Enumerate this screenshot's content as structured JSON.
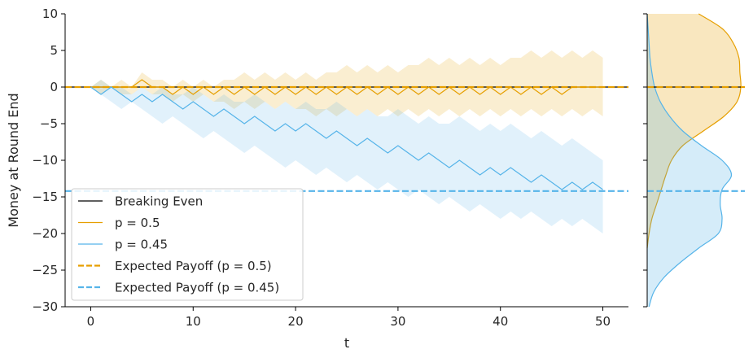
{
  "chart_data": {
    "type": "line",
    "xlabel": "t",
    "ylabel": "Money at Round End",
    "xlim": [
      -2.5,
      52.5
    ],
    "ylim": [
      -30,
      10
    ],
    "x_ticks": [
      0,
      10,
      20,
      30,
      40,
      50
    ],
    "y_ticks": [
      10,
      5,
      0,
      -5,
      -10,
      -15,
      -20,
      -25,
      -30
    ],
    "y_tick_labels": [
      "10",
      "5",
      "0",
      "−5",
      "−10",
      "−15",
      "−20",
      "−25",
      "−30"
    ],
    "grid": false,
    "legend_position": "lower-left",
    "legend": [
      {
        "label": "Breaking Even",
        "color": "#000000",
        "style": "solid"
      },
      {
        "label": "p = 0.5",
        "color": "#E69F00",
        "style": "solid"
      },
      {
        "label": "p = 0.45",
        "color": "#56B4E9",
        "style": "solid"
      },
      {
        "label": "Expected Payoff (p = 0.5)",
        "color": "#E69F00",
        "style": "dashed"
      },
      {
        "label": "Expected Payoff (p = 0.45)",
        "color": "#56B4E9",
        "style": "dashed"
      }
    ],
    "hlines": [
      {
        "name": "breaking-even",
        "y": 0,
        "color": "#000000",
        "style": "solid"
      },
      {
        "name": "expected-payoff-0.5",
        "y": 0,
        "color": "#E69F00",
        "style": "dashed"
      },
      {
        "name": "expected-payoff-0.45",
        "y": -14.2,
        "color": "#56B4E9",
        "style": "dashed"
      }
    ],
    "series": [
      {
        "label": "p = 0.5",
        "color": "#E69F00",
        "x": [
          0,
          1,
          2,
          3,
          4,
          5,
          6,
          7,
          8,
          9,
          10,
          11,
          12,
          13,
          14,
          15,
          16,
          17,
          18,
          19,
          20,
          21,
          22,
          23,
          24,
          25,
          26,
          27,
          28,
          29,
          30,
          31,
          32,
          33,
          34,
          35,
          36,
          37,
          38,
          39,
          40,
          41,
          42,
          43,
          44,
          45,
          46,
          47,
          48,
          49,
          50
        ],
        "y": [
          0,
          0,
          0,
          0,
          0,
          1,
          0,
          0,
          -1,
          0,
          -1,
          0,
          -1,
          0,
          -1,
          0,
          -1,
          0,
          -1,
          0,
          -1,
          0,
          -1,
          0,
          -1,
          0,
          -1,
          0,
          -1,
          0,
          -1,
          0,
          -1,
          0,
          -1,
          0,
          -1,
          0,
          -1,
          0,
          -1,
          0,
          -1,
          0,
          -1,
          0,
          -1,
          0,
          0,
          0,
          0
        ],
        "band_upper": [
          0,
          1,
          0,
          1,
          0,
          2,
          1,
          1,
          0,
          1,
          0,
          1,
          0,
          1,
          1,
          2,
          1,
          2,
          1,
          2,
          1,
          2,
          1,
          2,
          2,
          3,
          2,
          3,
          2,
          3,
          2,
          3,
          3,
          4,
          3,
          4,
          3,
          4,
          3,
          4,
          3,
          4,
          4,
          5,
          4,
          5,
          4,
          5,
          4,
          5,
          4
        ],
        "band_lower": [
          0,
          -1,
          0,
          -1,
          -1,
          0,
          -1,
          -1,
          -2,
          -1,
          -2,
          -1,
          -2,
          -2,
          -3,
          -2,
          -3,
          -2,
          -3,
          -2,
          -3,
          -3,
          -4,
          -3,
          -4,
          -3,
          -4,
          -3,
          -4,
          -3,
          -4,
          -3,
          -4,
          -3,
          -4,
          -3,
          -4,
          -3,
          -4,
          -3,
          -4,
          -3,
          -4,
          -3,
          -4,
          -3,
          -4,
          -3,
          -4,
          -3,
          -4
        ]
      },
      {
        "label": "p = 0.45",
        "color": "#56B4E9",
        "x": [
          0,
          1,
          2,
          3,
          4,
          5,
          6,
          7,
          8,
          9,
          10,
          11,
          12,
          13,
          14,
          15,
          16,
          17,
          18,
          19,
          20,
          21,
          22,
          23,
          24,
          25,
          26,
          27,
          28,
          29,
          30,
          31,
          32,
          33,
          34,
          35,
          36,
          37,
          38,
          39,
          40,
          41,
          42,
          43,
          44,
          45,
          46,
          47,
          48,
          49,
          50
        ],
        "y": [
          0,
          -1,
          0,
          -1,
          -2,
          -1,
          -2,
          -1,
          -2,
          -3,
          -2,
          -3,
          -4,
          -3,
          -4,
          -5,
          -4,
          -5,
          -6,
          -5,
          -6,
          -5,
          -6,
          -7,
          -6,
          -7,
          -8,
          -7,
          -8,
          -9,
          -8,
          -9,
          -10,
          -9,
          -10,
          -11,
          -10,
          -11,
          -12,
          -11,
          -12,
          -11,
          -12,
          -13,
          -12,
          -13,
          -14,
          -13,
          -14,
          -13,
          -14
        ],
        "band_upper": [
          0,
          1,
          0,
          0,
          -1,
          0,
          -1,
          0,
          -1,
          -1,
          0,
          -1,
          -2,
          -1,
          -2,
          -2,
          -1,
          -2,
          -3,
          -2,
          -3,
          -2,
          -3,
          -3,
          -2,
          -3,
          -4,
          -3,
          -4,
          -4,
          -3,
          -4,
          -5,
          -4,
          -5,
          -5,
          -4,
          -5,
          -6,
          -5,
          -6,
          -5,
          -6,
          -7,
          -6,
          -7,
          -8,
          -7,
          -8,
          -9,
          -10
        ],
        "band_lower": [
          0,
          -1,
          -2,
          -3,
          -2,
          -3,
          -4,
          -5,
          -4,
          -5,
          -6,
          -7,
          -6,
          -7,
          -8,
          -9,
          -8,
          -9,
          -10,
          -11,
          -10,
          -11,
          -12,
          -11,
          -12,
          -13,
          -12,
          -13,
          -14,
          -13,
          -14,
          -15,
          -14,
          -15,
          -16,
          -15,
          -16,
          -17,
          -16,
          -17,
          -18,
          -17,
          -18,
          -17,
          -18,
          -19,
          -18,
          -19,
          -18,
          -19,
          -20
        ]
      }
    ],
    "marginal_densities": [
      {
        "label": "p = 0.5",
        "color": "#E69F00",
        "y": [
          10,
          8,
          6,
          4,
          2,
          0,
          -2,
          -4,
          -6,
          -8,
          -10,
          -12,
          -14,
          -16,
          -18,
          -20,
          -22
        ],
        "density": [
          0.55,
          0.8,
          0.92,
          0.98,
          0.99,
          1.0,
          0.96,
          0.82,
          0.6,
          0.38,
          0.26,
          0.2,
          0.15,
          0.1,
          0.05,
          0.02,
          0.0
        ]
      },
      {
        "label": "p = 0.45",
        "color": "#56B4E9",
        "y": [
          10,
          8,
          6,
          4,
          2,
          0,
          -2,
          -4,
          -6,
          -8,
          -10,
          -12,
          -14,
          -16,
          -18,
          -20,
          -22,
          -24,
          -26,
          -28,
          -30
        ],
        "density": [
          0.0,
          0.01,
          0.02,
          0.03,
          0.05,
          0.08,
          0.14,
          0.24,
          0.38,
          0.58,
          0.8,
          0.9,
          0.8,
          0.78,
          0.8,
          0.76,
          0.55,
          0.35,
          0.18,
          0.07,
          0.02
        ]
      }
    ]
  }
}
